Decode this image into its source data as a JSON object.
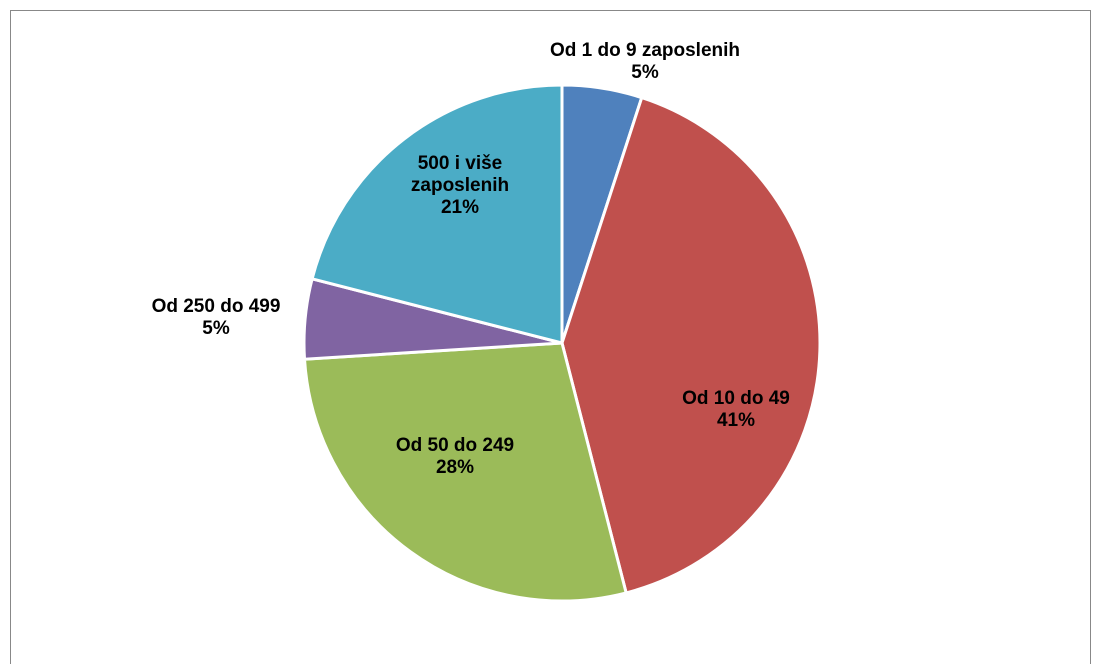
{
  "chart_data": {
    "type": "pie",
    "categories": [
      "Od 1 do 9 zaposlenih",
      "Od 10 do 49",
      "Od 50 do 249",
      "Od 250 do 499",
      "500 i više zaposlenih"
    ],
    "values": [
      5,
      41,
      28,
      5,
      21
    ],
    "value_labels": [
      "5%",
      "41%",
      "28%",
      "5%",
      "21%"
    ],
    "colors": [
      "#4f81bd",
      "#c0504d",
      "#9bbb59",
      "#8064a2",
      "#4bacc6"
    ]
  }
}
